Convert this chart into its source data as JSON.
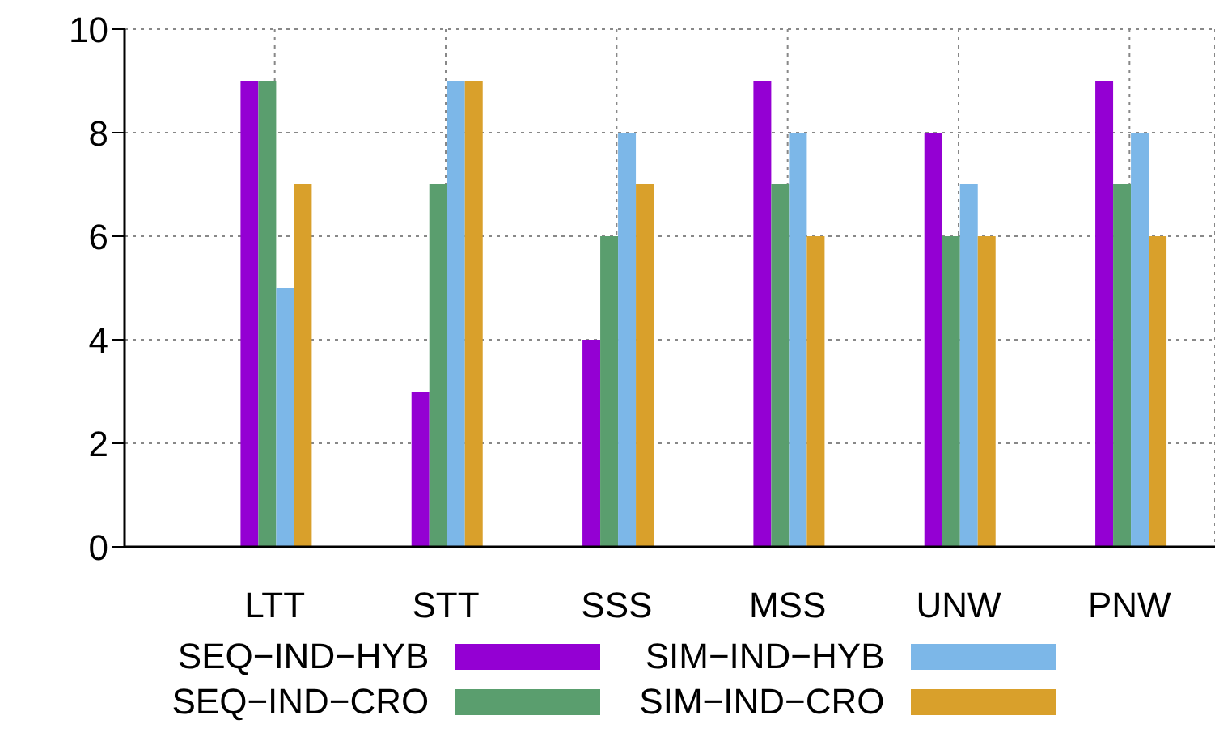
{
  "chart_data": {
    "type": "bar",
    "categories": [
      "LTT",
      "STT",
      "SSS",
      "MSS",
      "UNW",
      "PNW"
    ],
    "series": [
      {
        "name": "SEQ−IND−HYB",
        "color": "#9400d3",
        "values": [
          9,
          3,
          4,
          9,
          8,
          9
        ]
      },
      {
        "name": "SEQ−IND−CRO",
        "color": "#5a9e6e",
        "values": [
          9,
          7,
          6,
          7,
          6,
          7
        ]
      },
      {
        "name": "SIM−IND−HYB",
        "color": "#7cb7e8",
        "values": [
          5,
          9,
          8,
          8,
          7,
          8
        ]
      },
      {
        "name": "SIM−IND−CRO",
        "color": "#d9a02b",
        "values": [
          7,
          9,
          7,
          6,
          6,
          6
        ]
      }
    ],
    "ylim": [
      0,
      10
    ],
    "yticks": [
      0,
      2,
      4,
      6,
      8,
      10
    ],
    "grid": true,
    "legend": "bottom"
  }
}
